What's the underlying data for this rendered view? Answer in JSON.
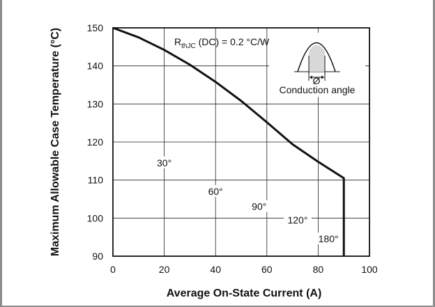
{
  "chart_data": {
    "type": "line",
    "title": "",
    "xlabel": "Average On-State Current (A)",
    "ylabel": "Maximum Allowable Case Temperature (°C)",
    "xlim": [
      0,
      100
    ],
    "ylim": [
      90,
      150
    ],
    "x_ticks": [
      0,
      20,
      40,
      60,
      80,
      100
    ],
    "y_ticks": [
      90,
      100,
      110,
      120,
      130,
      140,
      150
    ],
    "grid": true,
    "series": [
      {
        "x": [
          0,
          10,
          20,
          30,
          40,
          50,
          60,
          70,
          80,
          90,
          90
        ],
        "y": [
          150,
          147.5,
          144.2,
          140.3,
          135.8,
          130.8,
          125.2,
          119.4,
          114.8,
          110.5,
          90
        ]
      }
    ],
    "annotation": {
      "rthjc_main": "R",
      "rthjc_sub": "thJC",
      "rthjc_rest": " (DC) = 0.2 °C/W",
      "inset_symbol": "Ø",
      "inset_label": "Conduction angle"
    },
    "angle_labels": [
      {
        "text": "30°",
        "x": 20,
        "y": 114
      },
      {
        "text": "60°",
        "x": 40,
        "y": 106.5
      },
      {
        "text": "90°",
        "x": 57,
        "y": 102.5
      },
      {
        "text": "120°",
        "x": 72,
        "y": 99
      },
      {
        "text": "180°",
        "x": 84,
        "y": 94
      }
    ]
  }
}
